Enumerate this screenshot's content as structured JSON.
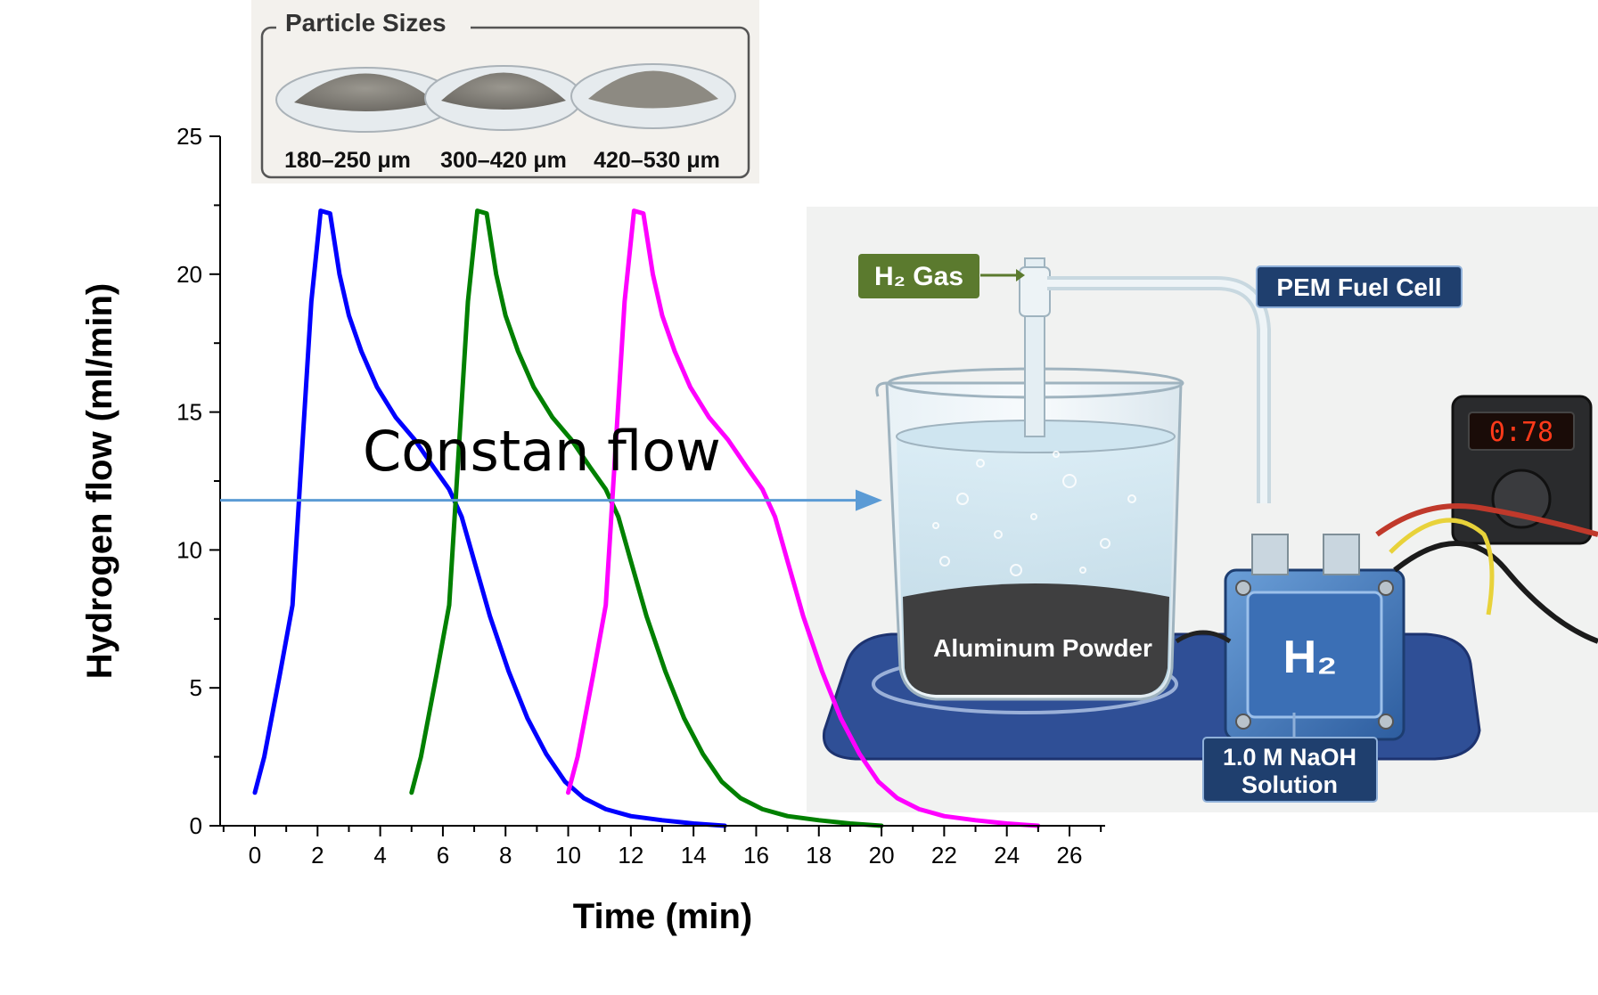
{
  "chart_data": {
    "type": "line",
    "title": "",
    "xlabel": "Time (min)",
    "ylabel": "Hydrogen flow (ml/min)",
    "xlim": [
      -1,
      27
    ],
    "ylim": [
      0,
      25
    ],
    "xticks": [
      0,
      2,
      4,
      6,
      8,
      10,
      12,
      14,
      16,
      18,
      20,
      22,
      24,
      26
    ],
    "yticks": [
      0,
      5,
      10,
      15,
      20,
      25
    ],
    "series": [
      {
        "color": "#0000ff",
        "x": [
          0,
          0.3,
          0.8,
          1.2,
          1.5,
          1.8,
          2.1,
          2.4,
          2.7,
          3.0,
          3.4,
          3.9,
          4.5,
          5.1,
          5.7,
          6.2,
          6.6,
          7.0,
          7.5,
          8.1,
          8.7,
          9.3,
          9.9,
          10.5,
          11.2,
          12.0,
          13.0,
          14.0,
          15.0
        ],
        "y": [
          1.2,
          2.5,
          5.5,
          8.0,
          13.5,
          19.0,
          22.3,
          22.2,
          20.0,
          18.5,
          17.2,
          15.9,
          14.8,
          14.0,
          13.0,
          12.2,
          11.2,
          9.6,
          7.6,
          5.6,
          3.9,
          2.6,
          1.6,
          1.0,
          0.6,
          0.35,
          0.2,
          0.08,
          0.0
        ]
      },
      {
        "color": "#008000",
        "x": [
          5,
          5.3,
          5.8,
          6.2,
          6.5,
          6.8,
          7.1,
          7.4,
          7.7,
          8.0,
          8.4,
          8.9,
          9.5,
          10.1,
          10.7,
          11.2,
          11.6,
          12.0,
          12.5,
          13.1,
          13.7,
          14.3,
          14.9,
          15.5,
          16.2,
          17.0,
          18.0,
          19.0,
          20.0
        ],
        "y": [
          1.2,
          2.5,
          5.5,
          8.0,
          13.5,
          19.0,
          22.3,
          22.2,
          20.0,
          18.5,
          17.2,
          15.9,
          14.8,
          14.0,
          13.0,
          12.2,
          11.2,
          9.6,
          7.6,
          5.6,
          3.9,
          2.6,
          1.6,
          1.0,
          0.6,
          0.35,
          0.2,
          0.08,
          0.0
        ]
      },
      {
        "color": "#ff00ff",
        "x": [
          10,
          10.3,
          10.8,
          11.2,
          11.5,
          11.8,
          12.1,
          12.4,
          12.7,
          13.0,
          13.4,
          13.9,
          14.5,
          15.1,
          15.7,
          16.2,
          16.6,
          17.0,
          17.5,
          18.1,
          18.7,
          19.3,
          19.9,
          20.5,
          21.2,
          22.0,
          23.0,
          24.0,
          25.0
        ],
        "y": [
          1.2,
          2.5,
          5.5,
          8.0,
          13.5,
          19.0,
          22.3,
          22.2,
          20.0,
          18.5,
          17.2,
          15.9,
          14.8,
          14.0,
          13.0,
          12.2,
          11.2,
          9.6,
          7.6,
          5.6,
          3.9,
          2.6,
          1.6,
          1.0,
          0.6,
          0.35,
          0.2,
          0.08,
          0.0
        ]
      }
    ],
    "annotations": {
      "flow_text": "Constan flow",
      "flow_line_y": 11.8
    }
  },
  "inset": {
    "title": "Particle Sizes",
    "dishes": [
      "180–250 μm",
      "300–420 μm",
      "420–530 μm"
    ]
  },
  "photo": {
    "h2_gas": "H₂ Gas",
    "fuel_cell": "PEM Fuel Cell",
    "powder": "Aluminum Powder",
    "h2_cell": "H₂",
    "solution_line1": "1.0 M NaOH",
    "solution_line2": "Solution",
    "meter_display": "0:78"
  },
  "colors": {
    "flow_arrow": "#5b9bd5",
    "h2_badge": "#5b7a2e",
    "fuel_badge": "#1f3f6e"
  }
}
